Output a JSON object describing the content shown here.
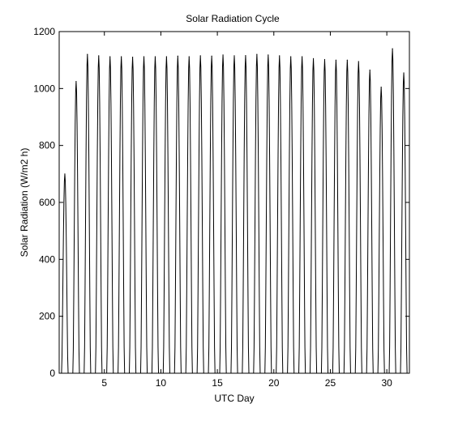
{
  "chart_data": {
    "type": "line",
    "title": "Solar Radiation Cycle",
    "xlabel": "UTC Day",
    "ylabel": "Solar Radiation (W/m2 h)",
    "xlim": [
      1,
      32
    ],
    "ylim": [
      0,
      1200
    ],
    "xticks": [
      5,
      10,
      15,
      20,
      25,
      30
    ],
    "yticks": [
      0,
      200,
      400,
      600,
      800,
      1000,
      1200
    ],
    "grid": false,
    "colors": {
      "line": "#000000",
      "axes": "#000000",
      "background": "#ffffff"
    },
    "series": [
      {
        "x_start": 1,
        "x_end": 32,
        "sampling": "hourly, one daily cycle per day",
        "daily_peaks": [
          {
            "day": 1.5,
            "peak": 700
          },
          {
            "day": 2.5,
            "peak": 1025
          },
          {
            "day": 3.5,
            "peak": 1120
          },
          {
            "day": 4.5,
            "peak": 1115
          },
          {
            "day": 5.5,
            "peak": 1112
          },
          {
            "day": 6.5,
            "peak": 1112
          },
          {
            "day": 7.5,
            "peak": 1110
          },
          {
            "day": 8.5,
            "peak": 1112
          },
          {
            "day": 9.5,
            "peak": 1112
          },
          {
            "day": 10.5,
            "peak": 1112
          },
          {
            "day": 11.5,
            "peak": 1114
          },
          {
            "day": 12.5,
            "peak": 1112
          },
          {
            "day": 13.5,
            "peak": 1115
          },
          {
            "day": 14.5,
            "peak": 1114
          },
          {
            "day": 15.5,
            "peak": 1118
          },
          {
            "day": 16.5,
            "peak": 1115
          },
          {
            "day": 17.5,
            "peak": 1116
          },
          {
            "day": 18.5,
            "peak": 1120
          },
          {
            "day": 19.5,
            "peak": 1118
          },
          {
            "day": 20.5,
            "peak": 1115
          },
          {
            "day": 21.5,
            "peak": 1112
          },
          {
            "day": 22.5,
            "peak": 1112
          },
          {
            "day": 23.5,
            "peak": 1105
          },
          {
            "day": 24.5,
            "peak": 1102
          },
          {
            "day": 25.5,
            "peak": 1100
          },
          {
            "day": 26.5,
            "peak": 1100
          },
          {
            "day": 27.5,
            "peak": 1095
          },
          {
            "day": 28.5,
            "peak": 1065
          },
          {
            "day": 29.5,
            "peak": 1005
          },
          {
            "day": 30.5,
            "peak": 1140
          },
          {
            "day": 31.5,
            "peak": 1055
          }
        ]
      }
    ]
  }
}
